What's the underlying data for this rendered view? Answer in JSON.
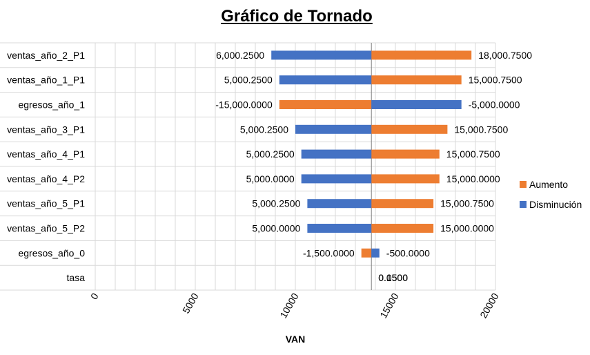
{
  "chart_data": {
    "type": "bar",
    "orientation": "horizontal-tornado",
    "title": "Gráfico de Tornado",
    "xlabel": "VAN",
    "ylabel": "",
    "xlim": [
      0,
      20000
    ],
    "x_ticks": [
      "0",
      "5000",
      "10000",
      "15000",
      "20000"
    ],
    "grid": true,
    "legend_position": "right",
    "categories": [
      "ventas_año_2_P1",
      "ventas_año_1_P1",
      "egresos_año_1",
      "ventas_año_3_P1",
      "ventas_año_4_P1",
      "ventas_año_4_P2",
      "ventas_año_5_P1",
      "ventas_año_5_P2",
      "egresos_año_0",
      "tasa"
    ],
    "series": [
      {
        "name": "Aumento",
        "color": "#ED7D31",
        "values": [
          18800,
          18300,
          9200,
          17600,
          17200,
          17200,
          16900,
          16900,
          13300,
          13800
        ],
        "labels": [
          "18,000.7500",
          "15,000.7500",
          "-15,000.0000",
          "15,000.7500",
          "15,000.7500",
          "15,000.0000",
          "15,000.7500",
          "15,000.0000",
          "-1,500.0000",
          "0.1500"
        ]
      },
      {
        "name": "Disminución",
        "color": "#4472C4",
        "values": [
          8800,
          9200,
          18300,
          10000,
          10300,
          10300,
          10600,
          10600,
          14200,
          13800
        ],
        "labels": [
          "6,000.2500",
          "5,000.2500",
          "-5,000.0000",
          "5,000.2500",
          "5,000.2500",
          "5,000.0000",
          "5,000.2500",
          "5,000.0000",
          "-500.0000",
          "0.0500"
        ]
      }
    ],
    "base_value": 13800
  }
}
